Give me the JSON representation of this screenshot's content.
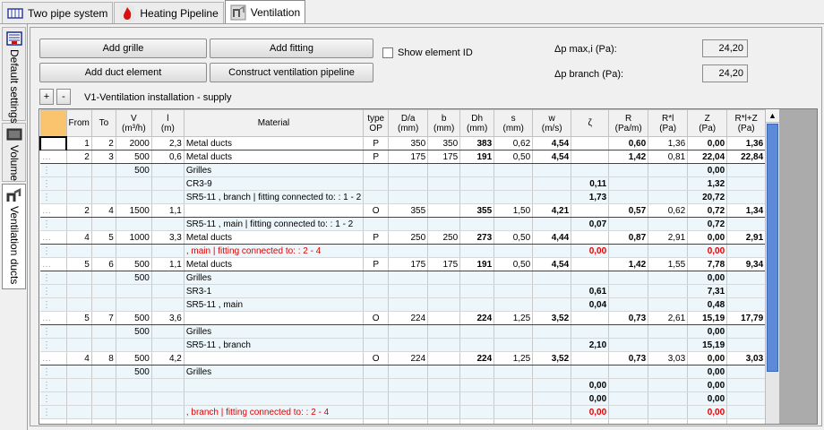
{
  "tabs": [
    {
      "label": "Two pipe system",
      "icon": "radiator-icon",
      "active": false
    },
    {
      "label": "Heating Pipeline",
      "icon": "flame-icon",
      "active": false
    },
    {
      "label": "Ventilation",
      "icon": "fan-icon",
      "active": true
    }
  ],
  "side_tabs": [
    {
      "label": "Default settings",
      "icon": "settings-icon"
    },
    {
      "label": "Volume",
      "icon": "volume-icon"
    },
    {
      "label": "Ventilation ducts",
      "icon": "duct-icon"
    }
  ],
  "toolbar": {
    "add_grille": "Add grille",
    "add_fitting": "Add fitting",
    "add_duct_element": "Add duct element",
    "construct_pipeline": "Construct ventilation pipeline",
    "show_element_id": "Show element ID",
    "show_element_id_checked": false,
    "dp_max_label": "Δp max,i (Pa):",
    "dp_max_value": "24,20",
    "dp_branch_label": "Δp branch (Pa):",
    "dp_branch_value": "24,20",
    "plus": "+",
    "minus": "-",
    "installation_name": "V1-Ventilation installation - supply"
  },
  "columns": [
    "",
    "From",
    "To",
    "V\n(m³/h)",
    "l\n(m)",
    "Material",
    "type\nOP",
    "D/a\n(mm)",
    "b\n(mm)",
    "Dh\n(mm)",
    "s\n(mm)",
    "w\n(m/s)",
    "ζ",
    "R\n(Pa/m)",
    "R*l\n(Pa)",
    "Z\n(Pa)",
    "R*l+Z\n(Pa)"
  ],
  "rows": [
    {
      "kind": "main",
      "cells": [
        "",
        "1",
        "2",
        "2000",
        "2,3",
        "Metal ducts",
        "P",
        "350",
        "350",
        "383",
        "0,62",
        "4,54",
        "",
        "0,60",
        "1,36",
        "0,00",
        "1,36"
      ]
    },
    {
      "kind": "main",
      "cells": [
        "…",
        "2",
        "3",
        "500",
        "0,6",
        "Metal ducts",
        "P",
        "175",
        "175",
        "191",
        "0,50",
        "4,54",
        "",
        "1,42",
        "0,81",
        "22,04",
        "22,84"
      ]
    },
    {
      "kind": "sub",
      "cells": [
        "⋮",
        "",
        "",
        "500",
        "",
        "Grilles",
        "",
        "",
        "",
        "",
        "",
        "",
        "",
        "",
        "",
        "0,00",
        ""
      ]
    },
    {
      "kind": "sub",
      "cells": [
        "⋮",
        "",
        "",
        "",
        "",
        "CR3-9",
        "",
        "",
        "",
        "",
        "",
        "",
        "0,11",
        "",
        "",
        "1,32",
        ""
      ]
    },
    {
      "kind": "sub",
      "cells": [
        "⋮",
        "",
        "",
        "",
        "",
        "SR5-11 , branch | fitting connected to: : 1 - 2",
        "",
        "",
        "",
        "",
        "",
        "",
        "1,73",
        "",
        "",
        "20,72",
        ""
      ]
    },
    {
      "kind": "main",
      "cells": [
        "…",
        "2",
        "4",
        "1500",
        "1,1",
        "",
        "O",
        "355",
        "",
        "355",
        "1,50",
        "4,21",
        "",
        "0,57",
        "0,62",
        "0,72",
        "1,34"
      ]
    },
    {
      "kind": "sub",
      "cells": [
        "⋮",
        "",
        "",
        "",
        "",
        "SR5-11 , main | fitting connected to: : 1 - 2",
        "",
        "",
        "",
        "",
        "",
        "",
        "0,07",
        "",
        "",
        "0,72",
        ""
      ]
    },
    {
      "kind": "main",
      "cells": [
        "…",
        "4",
        "5",
        "1000",
        "3,3",
        "Metal ducts",
        "P",
        "250",
        "250",
        "273",
        "0,50",
        "4,44",
        "",
        "0,87",
        "2,91",
        "0,00",
        "2,91"
      ]
    },
    {
      "kind": "sub",
      "red": true,
      "cells": [
        "⋮",
        "",
        "",
        "",
        "",
        ", main | fitting connected to: : 2 - 4",
        "",
        "",
        "",
        "",
        "",
        "",
        "0,00",
        "",
        "",
        "0,00",
        ""
      ]
    },
    {
      "kind": "main",
      "cells": [
        "…",
        "5",
        "6",
        "500",
        "1,1",
        "Metal ducts",
        "P",
        "175",
        "175",
        "191",
        "0,50",
        "4,54",
        "",
        "1,42",
        "1,55",
        "7,78",
        "9,34"
      ]
    },
    {
      "kind": "sub",
      "cells": [
        "⋮",
        "",
        "",
        "500",
        "",
        "Grilles",
        "",
        "",
        "",
        "",
        "",
        "",
        "",
        "",
        "",
        "0,00",
        ""
      ]
    },
    {
      "kind": "sub",
      "cells": [
        "⋮",
        "",
        "",
        "",
        "",
        "SR3-1",
        "",
        "",
        "",
        "",
        "",
        "",
        "0,61",
        "",
        "",
        "7,31",
        ""
      ]
    },
    {
      "kind": "sub",
      "cells": [
        "⋮",
        "",
        "",
        "",
        "",
        "SR5-11 , main",
        "",
        "",
        "",
        "",
        "",
        "",
        "0,04",
        "",
        "",
        "0,48",
        ""
      ]
    },
    {
      "kind": "main",
      "cells": [
        "…",
        "5",
        "7",
        "500",
        "3,6",
        "",
        "O",
        "224",
        "",
        "224",
        "1,25",
        "3,52",
        "",
        "0,73",
        "2,61",
        "15,19",
        "17,79"
      ]
    },
    {
      "kind": "sub",
      "cells": [
        "⋮",
        "",
        "",
        "500",
        "",
        "Grilles",
        "",
        "",
        "",
        "",
        "",
        "",
        "",
        "",
        "",
        "0,00",
        ""
      ]
    },
    {
      "kind": "sub",
      "cells": [
        "⋮",
        "",
        "",
        "",
        "",
        "SR5-11 , branch",
        "",
        "",
        "",
        "",
        "",
        "",
        "2,10",
        "",
        "",
        "15,19",
        ""
      ]
    },
    {
      "kind": "main",
      "cells": [
        "…",
        "4",
        "8",
        "500",
        "4,2",
        "",
        "O",
        "224",
        "",
        "224",
        "1,25",
        "3,52",
        "",
        "0,73",
        "3,03",
        "0,00",
        "3,03"
      ]
    },
    {
      "kind": "sub",
      "cells": [
        "⋮",
        "",
        "",
        "500",
        "",
        "Grilles",
        "",
        "",
        "",
        "",
        "",
        "",
        "",
        "",
        "",
        "0,00",
        ""
      ]
    },
    {
      "kind": "sub",
      "cells": [
        "⋮",
        "",
        "",
        "",
        "",
        "",
        "",
        "",
        "",
        "",
        "",
        "",
        "0,00",
        "",
        "",
        "0,00",
        ""
      ]
    },
    {
      "kind": "sub",
      "cells": [
        "⋮",
        "",
        "",
        "",
        "",
        "",
        "",
        "",
        "",
        "",
        "",
        "",
        "0,00",
        "",
        "",
        "0,00",
        ""
      ]
    },
    {
      "kind": "sub",
      "red": true,
      "cells": [
        "⋮",
        "",
        "",
        "",
        "",
        ", branch | fitting connected to: : 2 - 4",
        "",
        "",
        "",
        "",
        "",
        "",
        "0,00",
        "",
        "",
        "0,00",
        ""
      ]
    },
    {
      "kind": "empty",
      "cells": [
        "",
        "",
        "",
        "",
        "",
        "",
        "",
        "",
        "",
        "",
        "",
        "",
        "",
        "",
        "",
        "",
        ""
      ]
    }
  ]
}
